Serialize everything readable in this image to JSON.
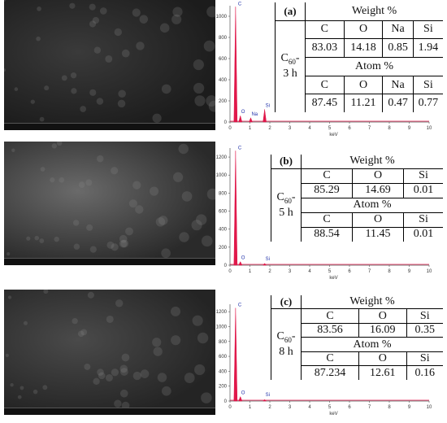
{
  "panels": [
    {
      "label": "(a)",
      "sample_element": "C",
      "sample_subscript": "60",
      "sample_suffix": "-",
      "sample_time": "3 h",
      "weight_title": "Weight %",
      "atom_title": "Atom %",
      "elements": [
        "C",
        "O",
        "Na",
        "Si"
      ],
      "weight": [
        83.03,
        14.18,
        0.85,
        1.94
      ],
      "atom": [
        87.45,
        11.21,
        0.47,
        0.77
      ],
      "spectrum": {
        "xlabel": "keV",
        "xlim": [
          0,
          10
        ],
        "xticks": [
          0,
          1,
          2,
          3,
          4,
          5,
          6,
          7,
          8,
          9,
          10
        ],
        "ylim": [
          0,
          1100
        ],
        "yticks": [
          0,
          200,
          400,
          600,
          800,
          1000
        ],
        "color": "#e0184a",
        "peaks": [
          {
            "label": "C",
            "x": 0.28,
            "height": 1090
          },
          {
            "label": "O",
            "x": 0.52,
            "height": 60
          },
          {
            "label": "Na",
            "x": 1.04,
            "height": 40
          },
          {
            "label": "Si",
            "x": 1.74,
            "height": 120
          }
        ]
      }
    },
    {
      "label": "(b)",
      "sample_element": "C",
      "sample_subscript": "60",
      "sample_suffix": "-",
      "sample_time": "5 h",
      "weight_title": "Weight %",
      "atom_title": "Atom %",
      "elements": [
        "C",
        "O",
        "Si"
      ],
      "weight": [
        85.29,
        14.69,
        0.01
      ],
      "atom": [
        88.54,
        11.45,
        0.01
      ],
      "spectrum": {
        "xlabel": "keV",
        "xlim": [
          0,
          10
        ],
        "xticks": [
          0,
          1,
          2,
          3,
          4,
          5,
          6,
          7,
          8,
          9,
          10
        ],
        "ylim": [
          0,
          1300
        ],
        "yticks": [
          0,
          200,
          400,
          600,
          800,
          1000,
          1200
        ],
        "color": "#e0184a",
        "peaks": [
          {
            "label": "C",
            "x": 0.28,
            "height": 1270
          },
          {
            "label": "O",
            "x": 0.52,
            "height": 40
          },
          {
            "label": "Si",
            "x": 1.74,
            "height": 20
          }
        ]
      }
    },
    {
      "label": "(c)",
      "sample_element": "C",
      "sample_subscript": "60",
      "sample_suffix": "-",
      "sample_time": "8 h",
      "weight_title": "Weight %",
      "atom_title": "Atom %",
      "elements": [
        "C",
        "O",
        "Si"
      ],
      "weight": [
        83.56,
        16.09,
        0.35
      ],
      "atom": [
        87.234,
        12.61,
        0.16
      ],
      "spectrum": {
        "xlabel": "keV",
        "xlim": [
          0,
          10
        ],
        "xticks": [
          0,
          1,
          2,
          3,
          4,
          5,
          6,
          7,
          8,
          9,
          10
        ],
        "ylim": [
          0,
          1300
        ],
        "yticks": [
          0,
          200,
          400,
          600,
          800,
          1000,
          1200
        ],
        "color": "#e0184a",
        "peaks": [
          {
            "label": "C",
            "x": 0.28,
            "height": 1250
          },
          {
            "label": "O",
            "x": 0.52,
            "height": 60
          },
          {
            "label": "Si",
            "x": 1.74,
            "height": 20
          }
        ]
      }
    }
  ]
}
